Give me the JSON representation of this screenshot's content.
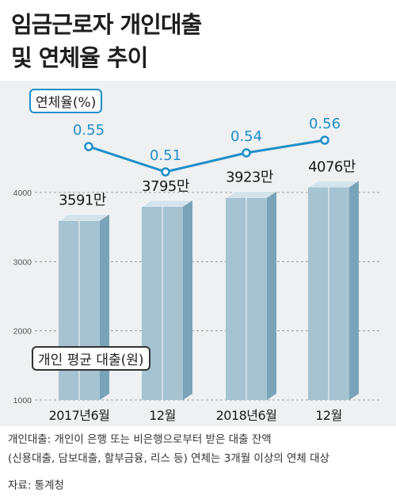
{
  "title_line1": "임금근로자 개인대출",
  "title_line2": "및 연체율 추이",
  "rate_label": "연체율(%)",
  "loan_label": "개인 평균 대출(원)",
  "notes": {
    "line1": "개인대출: 개인이 은행 또는 비은행으로부터 받은 대출 잔액",
    "line2": "(신용대출, 담보대출, 할부금융, 리스 등) 연체는  3개월 이상의 연체 대상",
    "source": "자료: 통계청"
  },
  "colors": {
    "bar_front": "#a6c3d1",
    "bar_side": "#7aa3b8",
    "bar_top": "#d4e4ec",
    "line": "#1f8ec9",
    "panel": "#eef0f2"
  },
  "chart_data": [
    {
      "type": "bar",
      "categories": [
        "2017년6월",
        "12월",
        "2018년6월",
        "12월"
      ],
      "values": [
        3591,
        3795,
        3923,
        4076
      ],
      "data_labels": [
        "3591만",
        "3795만",
        "3923만",
        "4076만"
      ],
      "ylabel": "개인 평균 대출(원)",
      "yticks": [
        1000,
        2000,
        3000,
        4000
      ],
      "ylim": [
        1000,
        4500
      ],
      "grid": true
    },
    {
      "type": "line",
      "categories": [
        "2017년6월",
        "12월",
        "2018년6월",
        "12월"
      ],
      "values": [
        0.55,
        0.51,
        0.54,
        0.56
      ],
      "data_labels": [
        "0.55",
        "0.51",
        "0.54",
        "0.56"
      ],
      "ylabel": "연체율(%)"
    }
  ]
}
